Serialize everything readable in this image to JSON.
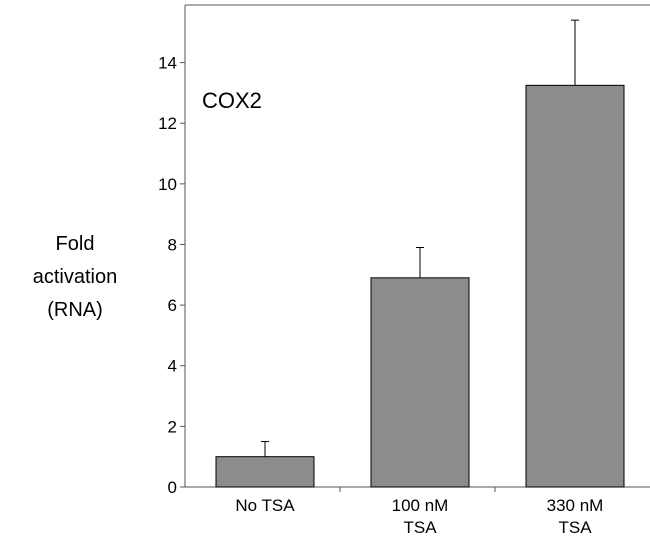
{
  "chart_data": {
    "type": "bar",
    "annotation": "COX2",
    "ylabel": [
      "Fold",
      "activation",
      "(RNA)"
    ],
    "categories": [
      [
        "No TSA"
      ],
      [
        "100 nM",
        "TSA"
      ],
      [
        "330 nM",
        "TSA"
      ]
    ],
    "values": [
      1.0,
      6.9,
      13.25
    ],
    "errors": [
      0.5,
      1.0,
      2.15
    ],
    "ylim": [
      0,
      15.9
    ],
    "yticks": [
      0,
      2,
      4,
      6,
      8,
      10,
      12,
      14
    ],
    "bar_color": "#8c8c8c",
    "edge_color": "#000000",
    "axis_color": "#555555"
  }
}
